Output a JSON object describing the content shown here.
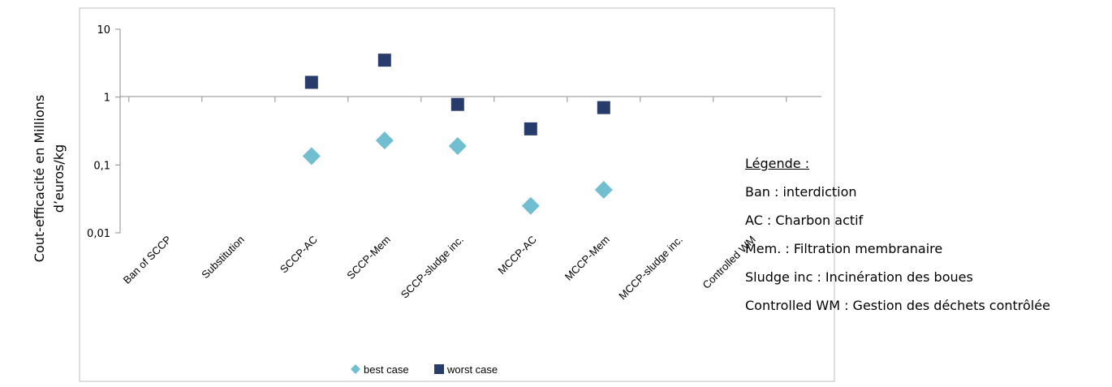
{
  "chart_data": {
    "type": "scatter",
    "categories": [
      "Ban of SCCP",
      "Substitution",
      "SCCP-AC",
      "SCCP-Mem",
      "SCCP-sludge inc.",
      "MCCP-AC",
      "MCCP-Mem",
      "MCCP-sludge inc.",
      "Controlled WM"
    ],
    "series": [
      {
        "name": "best case",
        "values": [
          null,
          null,
          0.135,
          0.23,
          0.19,
          0.025,
          0.043,
          null,
          null
        ],
        "color": "#6fbfd0",
        "marker": "diamond"
      },
      {
        "name": "worst case",
        "values": [
          null,
          null,
          1.65,
          3.5,
          0.78,
          0.34,
          0.7,
          null,
          null
        ],
        "color": "#273c6b",
        "marker": "square"
      }
    ],
    "yscale": "log",
    "ylim": [
      0.01,
      10
    ],
    "yticks": [
      "0,01",
      "0,1",
      "1",
      "10"
    ],
    "ylabel": "Cout-efficacité en Millions\nd’euros/kg",
    "xlabel": "",
    "grid": false,
    "legend_position": "bottom",
    "xaxis_at": 1
  },
  "legend_note": {
    "title": "Légende :",
    "items": [
      "Ban : interdiction",
      "AC : Charbon actif",
      "Mem. : Filtration membranaire",
      "Sludge inc : Incinération des boues",
      "Controlled WM : Gestion des déchets contrôlée"
    ]
  }
}
